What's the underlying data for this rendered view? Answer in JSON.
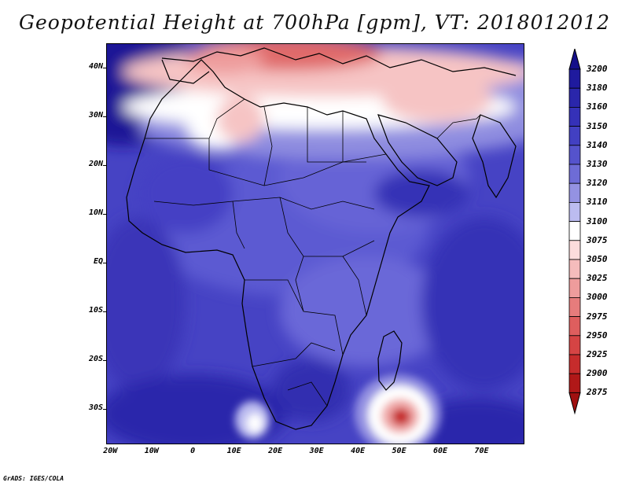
{
  "title": "Geopotential Height at 700hPa [gpm], VT: 2018012012",
  "credit": "GrADS: IGES/COLA",
  "map": {
    "lat_range": [
      -37,
      45
    ],
    "lon_range": [
      -21,
      80
    ],
    "lat_labels": [
      {
        "lat": 40,
        "text": "40N"
      },
      {
        "lat": 30,
        "text": "30N"
      },
      {
        "lat": 20,
        "text": "20N"
      },
      {
        "lat": 10,
        "text": "10N"
      },
      {
        "lat": 0,
        "text": "EQ"
      },
      {
        "lat": -10,
        "text": "10S"
      },
      {
        "lat": -20,
        "text": "20S"
      },
      {
        "lat": -30,
        "text": "30S"
      }
    ],
    "lon_labels": [
      {
        "lon": -20,
        "text": "20W"
      },
      {
        "lon": -10,
        "text": "10W"
      },
      {
        "lon": 0,
        "text": "0"
      },
      {
        "lon": 10,
        "text": "10E"
      },
      {
        "lon": 20,
        "text": "20E"
      },
      {
        "lon": 30,
        "text": "30E"
      },
      {
        "lon": 40,
        "text": "40E"
      },
      {
        "lon": 50,
        "text": "50E"
      },
      {
        "lon": 60,
        "text": "60E"
      },
      {
        "lon": 70,
        "text": "70E"
      }
    ]
  },
  "colorbar": {
    "top_arrow_value": "3200",
    "levels": [
      {
        "label": "3180",
        "color": "#1f1a9e"
      },
      {
        "label": "3160",
        "color": "#2a26ab"
      },
      {
        "label": "3150",
        "color": "#3531b8"
      },
      {
        "label": "3140",
        "color": "#4240c2"
      },
      {
        "label": "3130",
        "color": "#5553cc"
      },
      {
        "label": "3120",
        "color": "#6e6cd6"
      },
      {
        "label": "3110",
        "color": "#9492e2"
      },
      {
        "label": "3100",
        "color": "#bcbcf0"
      },
      {
        "label": "3075",
        "color": "#ffffff"
      },
      {
        "label": "3050",
        "color": "#fcdcdc"
      },
      {
        "label": "3025",
        "color": "#f5bcbc"
      },
      {
        "label": "3000",
        "color": "#ee9c9c"
      },
      {
        "label": "2975",
        "color": "#e67c7c"
      },
      {
        "label": "2950",
        "color": "#de5e5e"
      },
      {
        "label": "2925",
        "color": "#d54444"
      },
      {
        "label": "2900",
        "color": "#c62c2c"
      },
      {
        "label": "2875",
        "color": "#b01818"
      }
    ],
    "top_color": "#150f8a",
    "bottom_color": "#a01010"
  }
}
